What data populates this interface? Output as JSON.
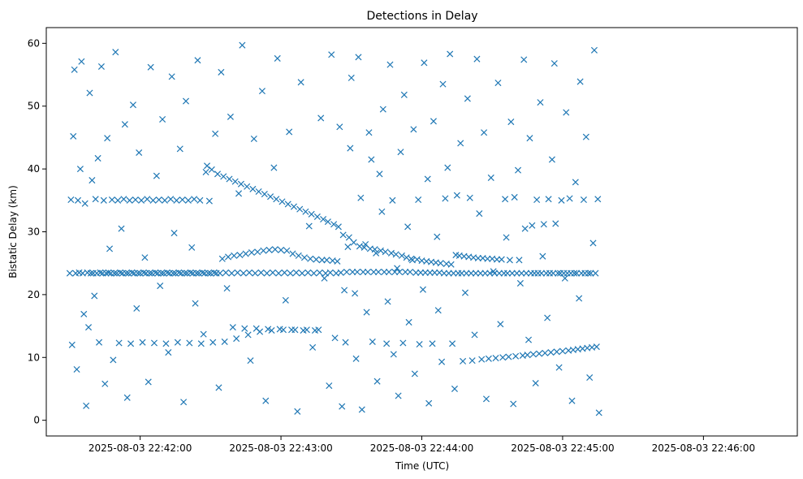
{
  "chart_data": {
    "type": "scatter",
    "title": "Detections in Delay",
    "xlabel": "Time (UTC)",
    "ylabel": "Bistatic Delay (km)",
    "x_ticks": [
      "2025-08-03 22:42:00",
      "2025-08-03 22:43:00",
      "2025-08-03 22:44:00",
      "2025-08-03 22:45:00",
      "2025-08-03 22:46:00"
    ],
    "y_ticks": [
      "0",
      "10",
      "20",
      "30",
      "40",
      "50",
      "60"
    ],
    "xlim": [
      "2025-08-03 22:41:20",
      "2025-08-03 22:46:40"
    ],
    "ylim": [
      -2.5,
      62.5
    ],
    "grid": false,
    "marker": "x",
    "marker_color": "#1f77b4",
    "series": [
      {
        "x_start": "2025-08-03 22:41:30",
        "x_step_seconds": 0.5,
        "y": [
          23.4,
          35.1,
          12.0,
          45.2,
          55.8,
          23.4,
          8.1,
          35.0,
          23.5,
          40.0,
          57.1,
          23.4,
          16.9,
          34.5,
          2.3,
          23.5,
          14.8,
          52.1,
          23.4,
          38.2,
          23.4,
          19.8,
          35.2,
          23.4,
          41.7,
          12.4,
          23.5,
          56.3,
          23.4,
          35.0,
          5.8,
          23.4,
          44.9,
          23.5,
          27.3,
          23.4,
          35.1,
          9.6,
          23.4,
          58.6,
          23.4,
          35.0,
          12.3,
          23.5,
          30.5,
          23.4,
          35.2,
          47.1,
          23.4,
          3.6,
          23.4,
          35.0,
          12.2,
          23.5,
          50.2,
          23.4,
          35.1,
          17.8,
          23.4,
          42.6,
          23.4,
          35.0,
          12.4,
          23.5,
          25.9,
          23.4,
          35.2,
          6.1,
          23.4,
          56.2,
          23.4,
          35.0,
          12.3,
          23.5,
          38.9,
          23.4,
          35.1,
          21.4,
          23.4,
          47.9,
          23.4,
          35.0,
          12.2,
          23.5,
          10.8,
          23.4,
          35.2,
          54.7,
          23.4,
          29.8,
          23.4,
          35.0,
          12.4,
          23.5,
          43.2,
          23.4,
          35.1,
          2.9,
          23.4,
          50.8,
          23.4,
          35.0,
          12.3,
          23.5,
          27.5,
          23.4,
          35.2,
          18.6,
          23.4,
          57.3,
          23.4,
          35.0,
          12.2,
          23.5,
          13.7,
          23.4,
          39.5,
          40.5,
          23.4,
          34.9,
          23.4,
          39.9,
          12.4,
          23.5,
          45.6,
          23.4,
          39.2,
          5.2,
          23.4,
          55.4,
          25.7,
          38.8,
          12.5,
          23.5,
          21.0,
          26.0,
          38.4,
          48.3,
          23.4,
          14.8,
          26.2,
          38.0,
          13.0,
          23.5,
          36.1,
          26.3,
          37.6,
          59.7,
          23.4,
          14.6,
          26.5,
          37.2,
          13.6,
          23.5,
          9.5,
          26.7,
          36.8,
          44.8,
          23.4,
          14.6,
          26.8,
          36.4,
          14.1,
          23.5,
          52.4,
          27.0,
          36.0,
          3.1,
          23.4,
          14.5,
          27.1,
          35.6,
          14.3,
          23.5,
          40.2,
          27.2,
          35.2,
          57.6,
          23.4,
          14.5,
          27.1,
          34.8,
          14.4,
          23.5,
          19.1,
          27.0,
          34.4,
          45.9,
          23.4,
          14.4,
          26.5,
          34.0,
          14.4,
          23.5,
          1.4,
          26.2,
          33.6,
          53.8,
          23.4,
          14.3,
          25.9,
          33.2,
          14.4,
          23.5,
          30.9,
          25.7,
          32.8,
          11.6,
          23.4,
          14.3,
          25.6,
          32.4,
          14.4,
          23.5,
          48.1,
          25.5,
          32.0,
          22.6,
          23.4,
          25.5,
          31.6,
          5.5,
          23.5,
          58.2,
          25.4,
          31.2,
          13.1,
          23.4,
          25.3,
          30.8,
          46.7,
          23.5,
          2.2,
          29.5,
          20.7,
          12.4,
          23.6,
          27.6,
          29.1,
          43.3,
          54.5,
          23.6,
          28.3,
          20.2,
          9.8,
          23.6,
          57.8,
          27.7,
          35.4,
          1.7,
          23.6,
          27.5,
          28.0,
          17.2,
          23.6,
          45.8,
          27.3,
          41.5,
          12.5,
          23.6,
          27.2,
          26.6,
          6.2,
          23.6,
          39.2,
          27.0,
          33.2,
          49.5,
          23.6,
          26.8,
          12.2,
          18.9,
          23.6,
          56.6,
          26.6,
          35.0,
          10.5,
          23.6,
          26.4,
          24.2,
          3.9,
          23.6,
          42.7,
          26.2,
          12.3,
          51.8,
          23.6,
          25.9,
          30.8,
          15.6,
          23.6,
          25.7,
          25.5,
          46.3,
          7.4,
          23.5,
          25.6,
          35.1,
          12.1,
          23.5,
          25.4,
          20.8,
          56.9,
          23.5,
          25.3,
          38.4,
          2.7,
          23.5,
          25.2,
          12.2,
          47.6,
          23.5,
          25.1,
          29.2,
          17.5,
          23.5,
          25.0,
          9.3,
          53.5,
          23.4,
          35.3,
          24.9,
          40.2,
          23.4,
          58.3,
          24.8,
          12.2,
          23.4,
          5.0,
          26.3,
          35.8,
          23.4,
          26.2,
          44.1,
          23.4,
          9.4,
          26.1,
          20.3,
          23.4,
          51.2,
          26.0,
          35.4,
          23.4,
          9.5,
          25.9,
          13.6,
          23.4,
          57.5,
          25.8,
          32.9,
          23.4,
          9.7,
          25.8,
          45.8,
          23.4,
          3.4,
          25.7,
          9.8,
          23.4,
          38.6,
          25.7,
          23.7,
          23.4,
          9.9,
          25.6,
          53.7,
          23.4,
          15.3,
          25.6,
          10.0,
          23.4,
          35.2,
          29.1,
          23.4,
          10.1,
          25.5,
          47.5,
          23.4,
          2.6,
          35.5,
          10.2,
          23.4,
          39.8,
          25.5,
          21.8,
          23.4,
          10.3,
          57.4,
          30.5,
          23.4,
          10.4,
          12.8,
          44.9,
          23.4,
          31.0,
          10.5,
          23.4,
          5.9,
          35.1,
          23.4,
          10.6,
          50.6,
          23.4,
          26.1,
          31.2,
          10.7,
          23.4,
          16.3,
          35.2,
          23.4,
          10.8,
          41.5,
          23.4,
          56.8,
          31.3,
          10.9,
          23.4,
          8.4,
          23.4,
          35.0,
          11.0,
          23.4,
          22.6,
          49.0,
          23.4,
          11.1,
          35.3,
          23.4,
          3.1,
          11.2,
          23.4,
          37.9,
          23.4,
          11.3,
          19.4,
          53.9,
          23.4,
          11.4,
          35.1,
          23.4,
          45.1,
          11.5,
          23.4,
          6.8,
          23.4,
          11.6,
          28.2,
          58.9,
          23.4,
          11.7,
          35.2,
          1.2
        ]
      }
    ]
  }
}
